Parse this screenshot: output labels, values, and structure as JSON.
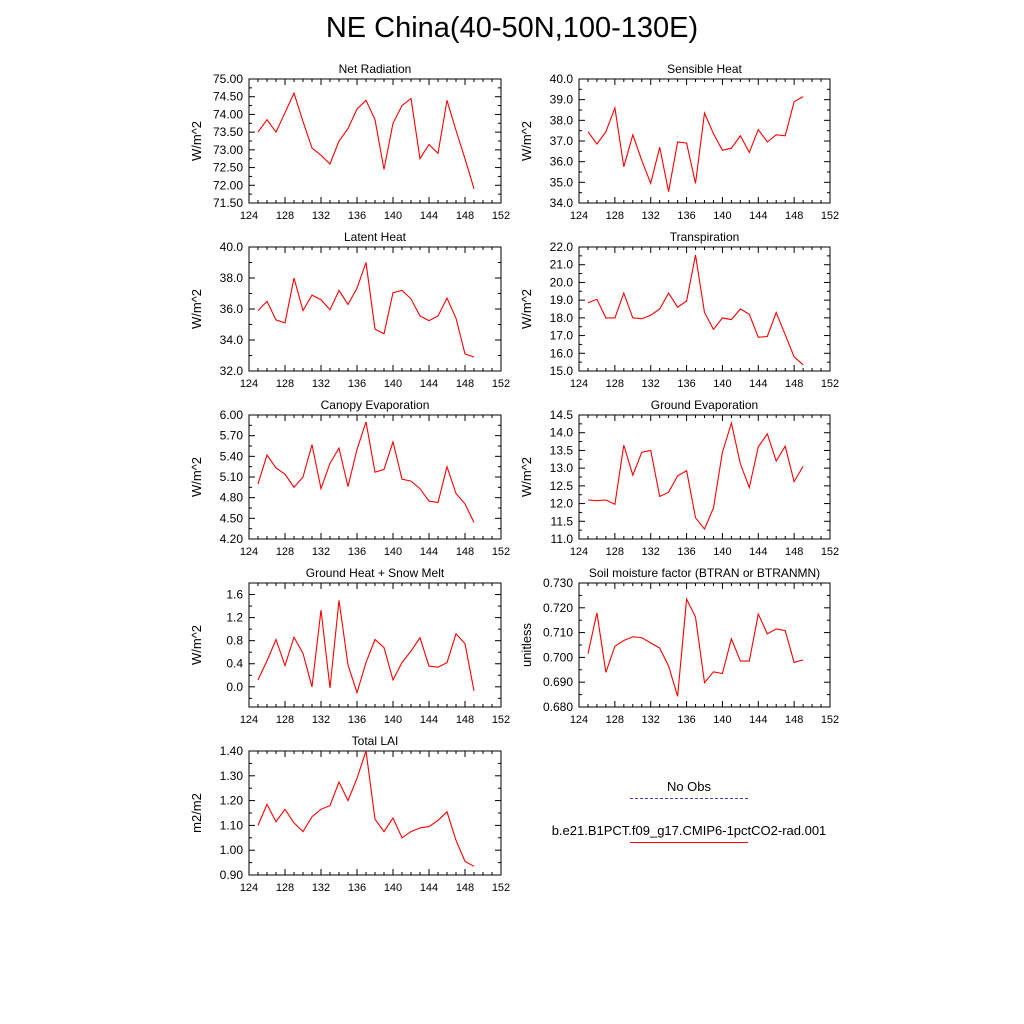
{
  "figure": {
    "title": "NE China(40-50N,100-130E)"
  },
  "legend": {
    "entries": [
      {
        "label": "No Obs",
        "color": "#3f3fb8",
        "style": "dashed"
      },
      {
        "label": "b.e21.B1PCT.f09_g17.CMIP6-1pctCO2-rad.001",
        "color": "#ff0000",
        "style": "solid"
      }
    ]
  },
  "chart_data": [
    {
      "type": "line",
      "title": "Net Radiation",
      "ylabel": "W/m^2",
      "xlim": [
        124,
        152
      ],
      "xticks": [
        "124",
        "128",
        "132",
        "136",
        "140",
        "144",
        "148",
        "152"
      ],
      "ylim": [
        71.5,
        75.0
      ],
      "yticks": [
        "71.50",
        "72.00",
        "72.50",
        "73.00",
        "73.50",
        "74.00",
        "74.50",
        "75.00"
      ],
      "series": [
        {
          "color": "#ff0000",
          "x": [
            125,
            126,
            127,
            128,
            129,
            130,
            131,
            132,
            133,
            134,
            135,
            136,
            137,
            138,
            139,
            140,
            141,
            142,
            143,
            144,
            145,
            146,
            147,
            148,
            149
          ],
          "y": [
            73.5,
            73.85,
            73.5,
            74.05,
            74.6,
            73.8,
            73.05,
            72.85,
            72.6,
            73.25,
            73.6,
            74.15,
            74.4,
            73.85,
            72.45,
            73.75,
            74.25,
            74.45,
            72.75,
            73.15,
            72.9,
            74.4,
            73.55,
            72.75,
            71.9
          ]
        }
      ]
    },
    {
      "type": "line",
      "title": "Sensible Heat",
      "ylabel": "W/m^2",
      "xlim": [
        124,
        152
      ],
      "xticks": [
        "124",
        "128",
        "132",
        "136",
        "140",
        "144",
        "148",
        "152"
      ],
      "ylim": [
        34.0,
        40.0
      ],
      "yticks": [
        "34.0",
        "35.0",
        "36.0",
        "37.0",
        "38.0",
        "39.0",
        "40.0"
      ],
      "series": [
        {
          "color": "#ff0000",
          "x": [
            125,
            126,
            127,
            128,
            129,
            130,
            131,
            132,
            133,
            134,
            135,
            136,
            137,
            138,
            139,
            140,
            141,
            142,
            143,
            144,
            145,
            146,
            147,
            148,
            149
          ],
          "y": [
            37.45,
            36.85,
            37.45,
            38.6,
            35.75,
            37.3,
            36.05,
            34.95,
            36.7,
            34.55,
            36.95,
            36.9,
            34.95,
            38.35,
            37.35,
            36.55,
            36.65,
            37.25,
            36.45,
            37.55,
            36.95,
            37.3,
            37.25,
            38.9,
            39.15
          ]
        }
      ]
    },
    {
      "type": "line",
      "title": "Latent Heat",
      "ylabel": "W/m^2",
      "xlim": [
        124,
        152
      ],
      "xticks": [
        "124",
        "128",
        "132",
        "136",
        "140",
        "144",
        "148",
        "152"
      ],
      "ylim": [
        32.0,
        40.0
      ],
      "yticks": [
        "32.0",
        "34.0",
        "36.0",
        "38.0",
        "40.0"
      ],
      "series": [
        {
          "color": "#ff0000",
          "x": [
            125,
            126,
            127,
            128,
            129,
            130,
            131,
            132,
            133,
            134,
            135,
            136,
            137,
            138,
            139,
            140,
            141,
            142,
            143,
            144,
            145,
            146,
            147,
            148,
            149
          ],
          "y": [
            35.9,
            36.5,
            35.3,
            35.1,
            38.0,
            35.9,
            36.9,
            36.6,
            35.95,
            37.2,
            36.3,
            37.35,
            39.0,
            34.7,
            34.4,
            37.05,
            37.2,
            36.65,
            35.55,
            35.25,
            35.55,
            36.7,
            35.4,
            33.1,
            32.9
          ]
        }
      ]
    },
    {
      "type": "line",
      "title": "Transpiration",
      "ylabel": "W/m^2",
      "xlim": [
        124,
        152
      ],
      "xticks": [
        "124",
        "128",
        "132",
        "136",
        "140",
        "144",
        "148",
        "152"
      ],
      "ylim": [
        15.0,
        22.0
      ],
      "yticks": [
        "15.0",
        "16.0",
        "17.0",
        "18.0",
        "19.0",
        "20.0",
        "21.0",
        "22.0"
      ],
      "series": [
        {
          "color": "#ff0000",
          "x": [
            125,
            126,
            127,
            128,
            129,
            130,
            131,
            132,
            133,
            134,
            135,
            136,
            137,
            138,
            139,
            140,
            141,
            142,
            143,
            144,
            145,
            146,
            147,
            148,
            149
          ],
          "y": [
            18.85,
            19.05,
            18.0,
            18.0,
            19.4,
            18.0,
            17.95,
            18.15,
            18.5,
            19.4,
            18.6,
            18.95,
            21.55,
            18.3,
            17.35,
            18.0,
            17.9,
            18.5,
            18.2,
            16.9,
            16.95,
            18.3,
            17.05,
            15.8,
            15.35
          ]
        }
      ]
    },
    {
      "type": "line",
      "title": "Canopy Evaporation",
      "ylabel": "W/m^2",
      "xlim": [
        124,
        152
      ],
      "xticks": [
        "124",
        "128",
        "132",
        "136",
        "140",
        "144",
        "148",
        "152"
      ],
      "ylim": [
        4.2,
        6.0
      ],
      "yticks": [
        "4.20",
        "4.50",
        "4.80",
        "5.10",
        "5.40",
        "5.70",
        "6.00"
      ],
      "series": [
        {
          "color": "#ff0000",
          "x": [
            125,
            126,
            127,
            128,
            129,
            130,
            131,
            132,
            133,
            134,
            135,
            136,
            137,
            138,
            139,
            140,
            141,
            142,
            143,
            144,
            145,
            146,
            147,
            148,
            149
          ],
          "y": [
            5.0,
            5.42,
            5.23,
            5.14,
            4.95,
            5.1,
            5.57,
            4.93,
            5.3,
            5.52,
            4.96,
            5.5,
            5.9,
            5.17,
            5.21,
            5.61,
            5.07,
            5.04,
            4.93,
            4.75,
            4.73,
            5.25,
            4.86,
            4.71,
            4.44
          ]
        }
      ]
    },
    {
      "type": "line",
      "title": "Ground Evaporation",
      "ylabel": "W/m^2",
      "xlim": [
        124,
        152
      ],
      "xticks": [
        "124",
        "128",
        "132",
        "136",
        "140",
        "144",
        "148",
        "152"
      ],
      "ylim": [
        11.0,
        14.5
      ],
      "yticks": [
        "11.0",
        "11.5",
        "12.0",
        "12.5",
        "13.0",
        "13.5",
        "14.0",
        "14.5"
      ],
      "series": [
        {
          "color": "#ff0000",
          "x": [
            125,
            126,
            127,
            128,
            129,
            130,
            131,
            132,
            133,
            134,
            135,
            136,
            137,
            138,
            139,
            140,
            141,
            142,
            143,
            144,
            145,
            146,
            147,
            148,
            149
          ],
          "y": [
            12.1,
            12.08,
            12.1,
            11.98,
            13.65,
            12.8,
            13.45,
            13.5,
            12.2,
            12.32,
            12.78,
            12.93,
            11.6,
            11.28,
            11.88,
            13.45,
            14.27,
            13.12,
            12.45,
            13.6,
            13.97,
            13.2,
            13.62,
            12.62,
            13.05
          ]
        }
      ]
    },
    {
      "type": "line",
      "title": "Ground Heat + Snow Melt",
      "ylabel": "W/m^2",
      "xlim": [
        124,
        152
      ],
      "xticks": [
        "124",
        "128",
        "132",
        "136",
        "140",
        "144",
        "148",
        "152"
      ],
      "ylim": [
        -0.35,
        1.8
      ],
      "yticks": [
        "0.0",
        "0.4",
        "0.8",
        "1.2",
        "1.6"
      ],
      "ytick_values": [
        0.0,
        0.4,
        0.8,
        1.2,
        1.6
      ],
      "series": [
        {
          "color": "#ff0000",
          "x": [
            125,
            126,
            127,
            128,
            129,
            130,
            131,
            132,
            133,
            134,
            135,
            136,
            137,
            138,
            139,
            140,
            141,
            142,
            143,
            144,
            145,
            146,
            147,
            148,
            149
          ],
          "y": [
            0.12,
            0.45,
            0.82,
            0.37,
            0.86,
            0.58,
            0.0,
            1.33,
            -0.02,
            1.5,
            0.38,
            -0.1,
            0.42,
            0.82,
            0.68,
            0.12,
            0.42,
            0.62,
            0.85,
            0.36,
            0.34,
            0.42,
            0.92,
            0.75,
            -0.07
          ]
        }
      ]
    },
    {
      "type": "line",
      "title": "Soil moisture factor (BTRAN or BTRANMN)",
      "ylabel": "unitless",
      "xlim": [
        124,
        152
      ],
      "xticks": [
        "124",
        "128",
        "132",
        "136",
        "140",
        "144",
        "148",
        "152"
      ],
      "ylim": [
        0.68,
        0.73
      ],
      "yticks": [
        "0.680",
        "0.690",
        "0.700",
        "0.710",
        "0.720",
        "0.730"
      ],
      "series": [
        {
          "color": "#ff0000",
          "x": [
            125,
            126,
            127,
            128,
            129,
            130,
            131,
            132,
            133,
            134,
            135,
            136,
            137,
            138,
            139,
            140,
            141,
            142,
            143,
            144,
            145,
            146,
            147,
            148,
            149
          ],
          "y": [
            0.7015,
            0.718,
            0.694,
            0.7045,
            0.7068,
            0.7083,
            0.708,
            0.7058,
            0.7038,
            0.6965,
            0.6843,
            0.7235,
            0.7163,
            0.6898,
            0.6942,
            0.6935,
            0.7075,
            0.6985,
            0.6985,
            0.7175,
            0.7095,
            0.7115,
            0.7108,
            0.698,
            0.699
          ]
        }
      ]
    },
    {
      "type": "line",
      "title": "Total LAI",
      "ylabel": "m2/m2",
      "xlim": [
        124,
        152
      ],
      "xticks": [
        "124",
        "128",
        "132",
        "136",
        "140",
        "144",
        "148",
        "152"
      ],
      "ylim": [
        0.9,
        1.4
      ],
      "yticks": [
        "0.90",
        "1.00",
        "1.10",
        "1.20",
        "1.30",
        "1.40"
      ],
      "series": [
        {
          "color": "#ff0000",
          "x": [
            125,
            126,
            127,
            128,
            129,
            130,
            131,
            132,
            133,
            134,
            135,
            136,
            137,
            138,
            139,
            140,
            141,
            142,
            143,
            144,
            145,
            146,
            147,
            148,
            149
          ],
          "y": [
            1.1,
            1.185,
            1.115,
            1.165,
            1.11,
            1.075,
            1.135,
            1.165,
            1.18,
            1.275,
            1.2,
            1.29,
            1.4,
            1.125,
            1.075,
            1.13,
            1.05,
            1.075,
            1.09,
            1.095,
            1.12,
            1.155,
            1.04,
            0.955,
            0.935
          ]
        }
      ]
    }
  ]
}
